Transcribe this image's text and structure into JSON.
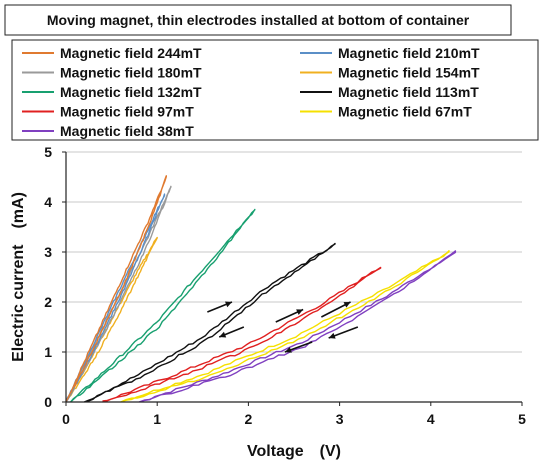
{
  "chart_data": {
    "type": "line",
    "title": "Moving magnet, thin electrodes installed at bottom of container",
    "xlabel": "Voltage　(V)",
    "ylabel": "Electric current　(mA)",
    "xlim": [
      0,
      5
    ],
    "ylim": [
      0,
      5
    ],
    "xticks": [
      "0",
      "1",
      "2",
      "3",
      "4",
      "5"
    ],
    "yticks": [
      "0",
      "1",
      "2",
      "3",
      "4",
      "5"
    ],
    "grid": "horizontal",
    "legend_position": "top",
    "series": [
      {
        "name": "Magnetic field 244mT",
        "color": "#e07a30",
        "x": [
          0.0,
          0.3,
          0.6,
          0.9,
          1.1
        ],
        "y": [
          0.0,
          1.2,
          2.4,
          3.6,
          4.5
        ]
      },
      {
        "name": "Magnetic field 210mT",
        "color": "#5b8fc7",
        "x": [
          0.0,
          0.3,
          0.6,
          0.9,
          1.08
        ],
        "y": [
          0.0,
          1.15,
          2.3,
          3.45,
          4.15
        ]
      },
      {
        "name": "Magnetic field 180mT",
        "color": "#9a9a9a",
        "x": [
          0.0,
          0.3,
          0.6,
          0.9,
          1.15
        ],
        "y": [
          0.0,
          1.1,
          2.2,
          3.3,
          4.3
        ]
      },
      {
        "name": "Magnetic field 154mT",
        "color": "#f0b020",
        "x": [
          0.0,
          0.25,
          0.5,
          0.75,
          1.0
        ],
        "y": [
          0.0,
          0.8,
          1.65,
          2.5,
          3.3
        ]
      },
      {
        "name": "Magnetic field 132mT",
        "color": "#18a070",
        "x": [
          0.05,
          0.5,
          1.0,
          1.5,
          2.07
        ],
        "y": [
          0.0,
          0.75,
          1.6,
          2.65,
          3.85
        ]
      },
      {
        "name": "Magnetic field 113mT",
        "color": "#111111",
        "x": [
          0.2,
          0.8,
          1.5,
          2.2,
          2.95
        ],
        "y": [
          0.0,
          0.55,
          1.3,
          2.3,
          3.15
        ]
      },
      {
        "name": "Magnetic field 97mT",
        "color": "#e02020",
        "x": [
          0.4,
          1.2,
          2.0,
          2.8,
          3.45
        ],
        "y": [
          0.0,
          0.55,
          1.15,
          1.95,
          2.7
        ]
      },
      {
        "name": "Magnetic field 67mT",
        "color": "#f5e000",
        "x": [
          0.6,
          1.5,
          2.5,
          3.5,
          4.2
        ],
        "y": [
          0.0,
          0.55,
          1.3,
          2.25,
          3.0
        ]
      },
      {
        "name": "Magnetic field 38mT",
        "color": "#8040c0",
        "x": [
          0.8,
          1.7,
          2.6,
          3.5,
          4.27
        ],
        "y": [
          0.0,
          0.55,
          1.2,
          2.1,
          3.0
        ]
      }
    ]
  }
}
